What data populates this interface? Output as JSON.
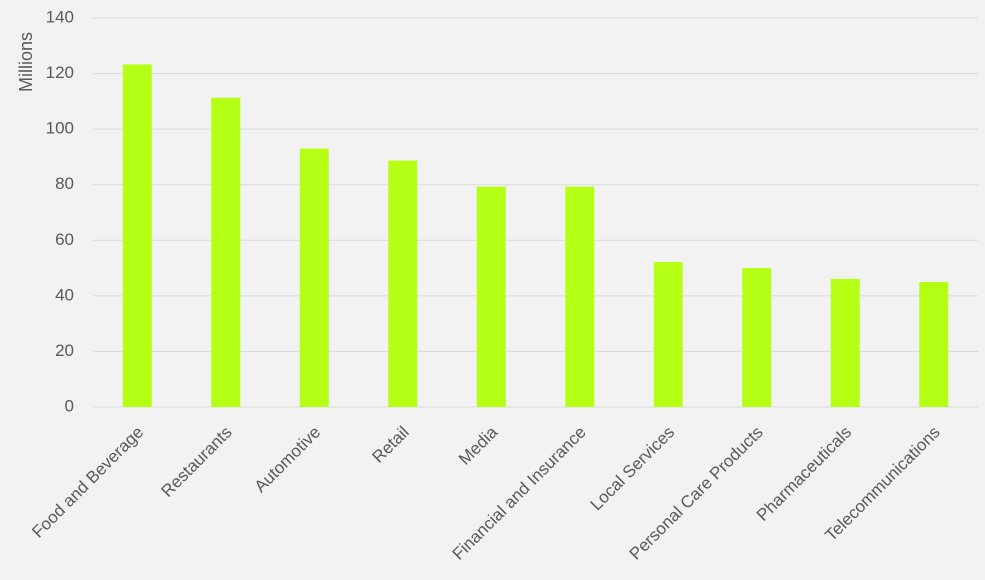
{
  "chart_data": {
    "type": "bar",
    "categories": [
      "Food and Beverage",
      "Restaurants",
      "Automotive",
      "Retail",
      "Media",
      "Financial and Insurance",
      "Local Services",
      "Personal Care Products",
      "Pharmaceuticals",
      "Telecommunications"
    ],
    "values": [
      123.3,
      111.3,
      93.0,
      88.7,
      79.3,
      79.3,
      52.2,
      50.0,
      46.1,
      45.0
    ],
    "title": "",
    "xlabel": "",
    "ylabel": "Millions",
    "ylim": [
      0,
      140
    ],
    "yticks": [
      0,
      20,
      40,
      60,
      80,
      100,
      120,
      140
    ],
    "grid": true,
    "legend": "none",
    "colors": {
      "bar": "#b5ff14",
      "background": "#f2f2f2",
      "grid": "#d9d9d9",
      "text": "#595959"
    }
  }
}
